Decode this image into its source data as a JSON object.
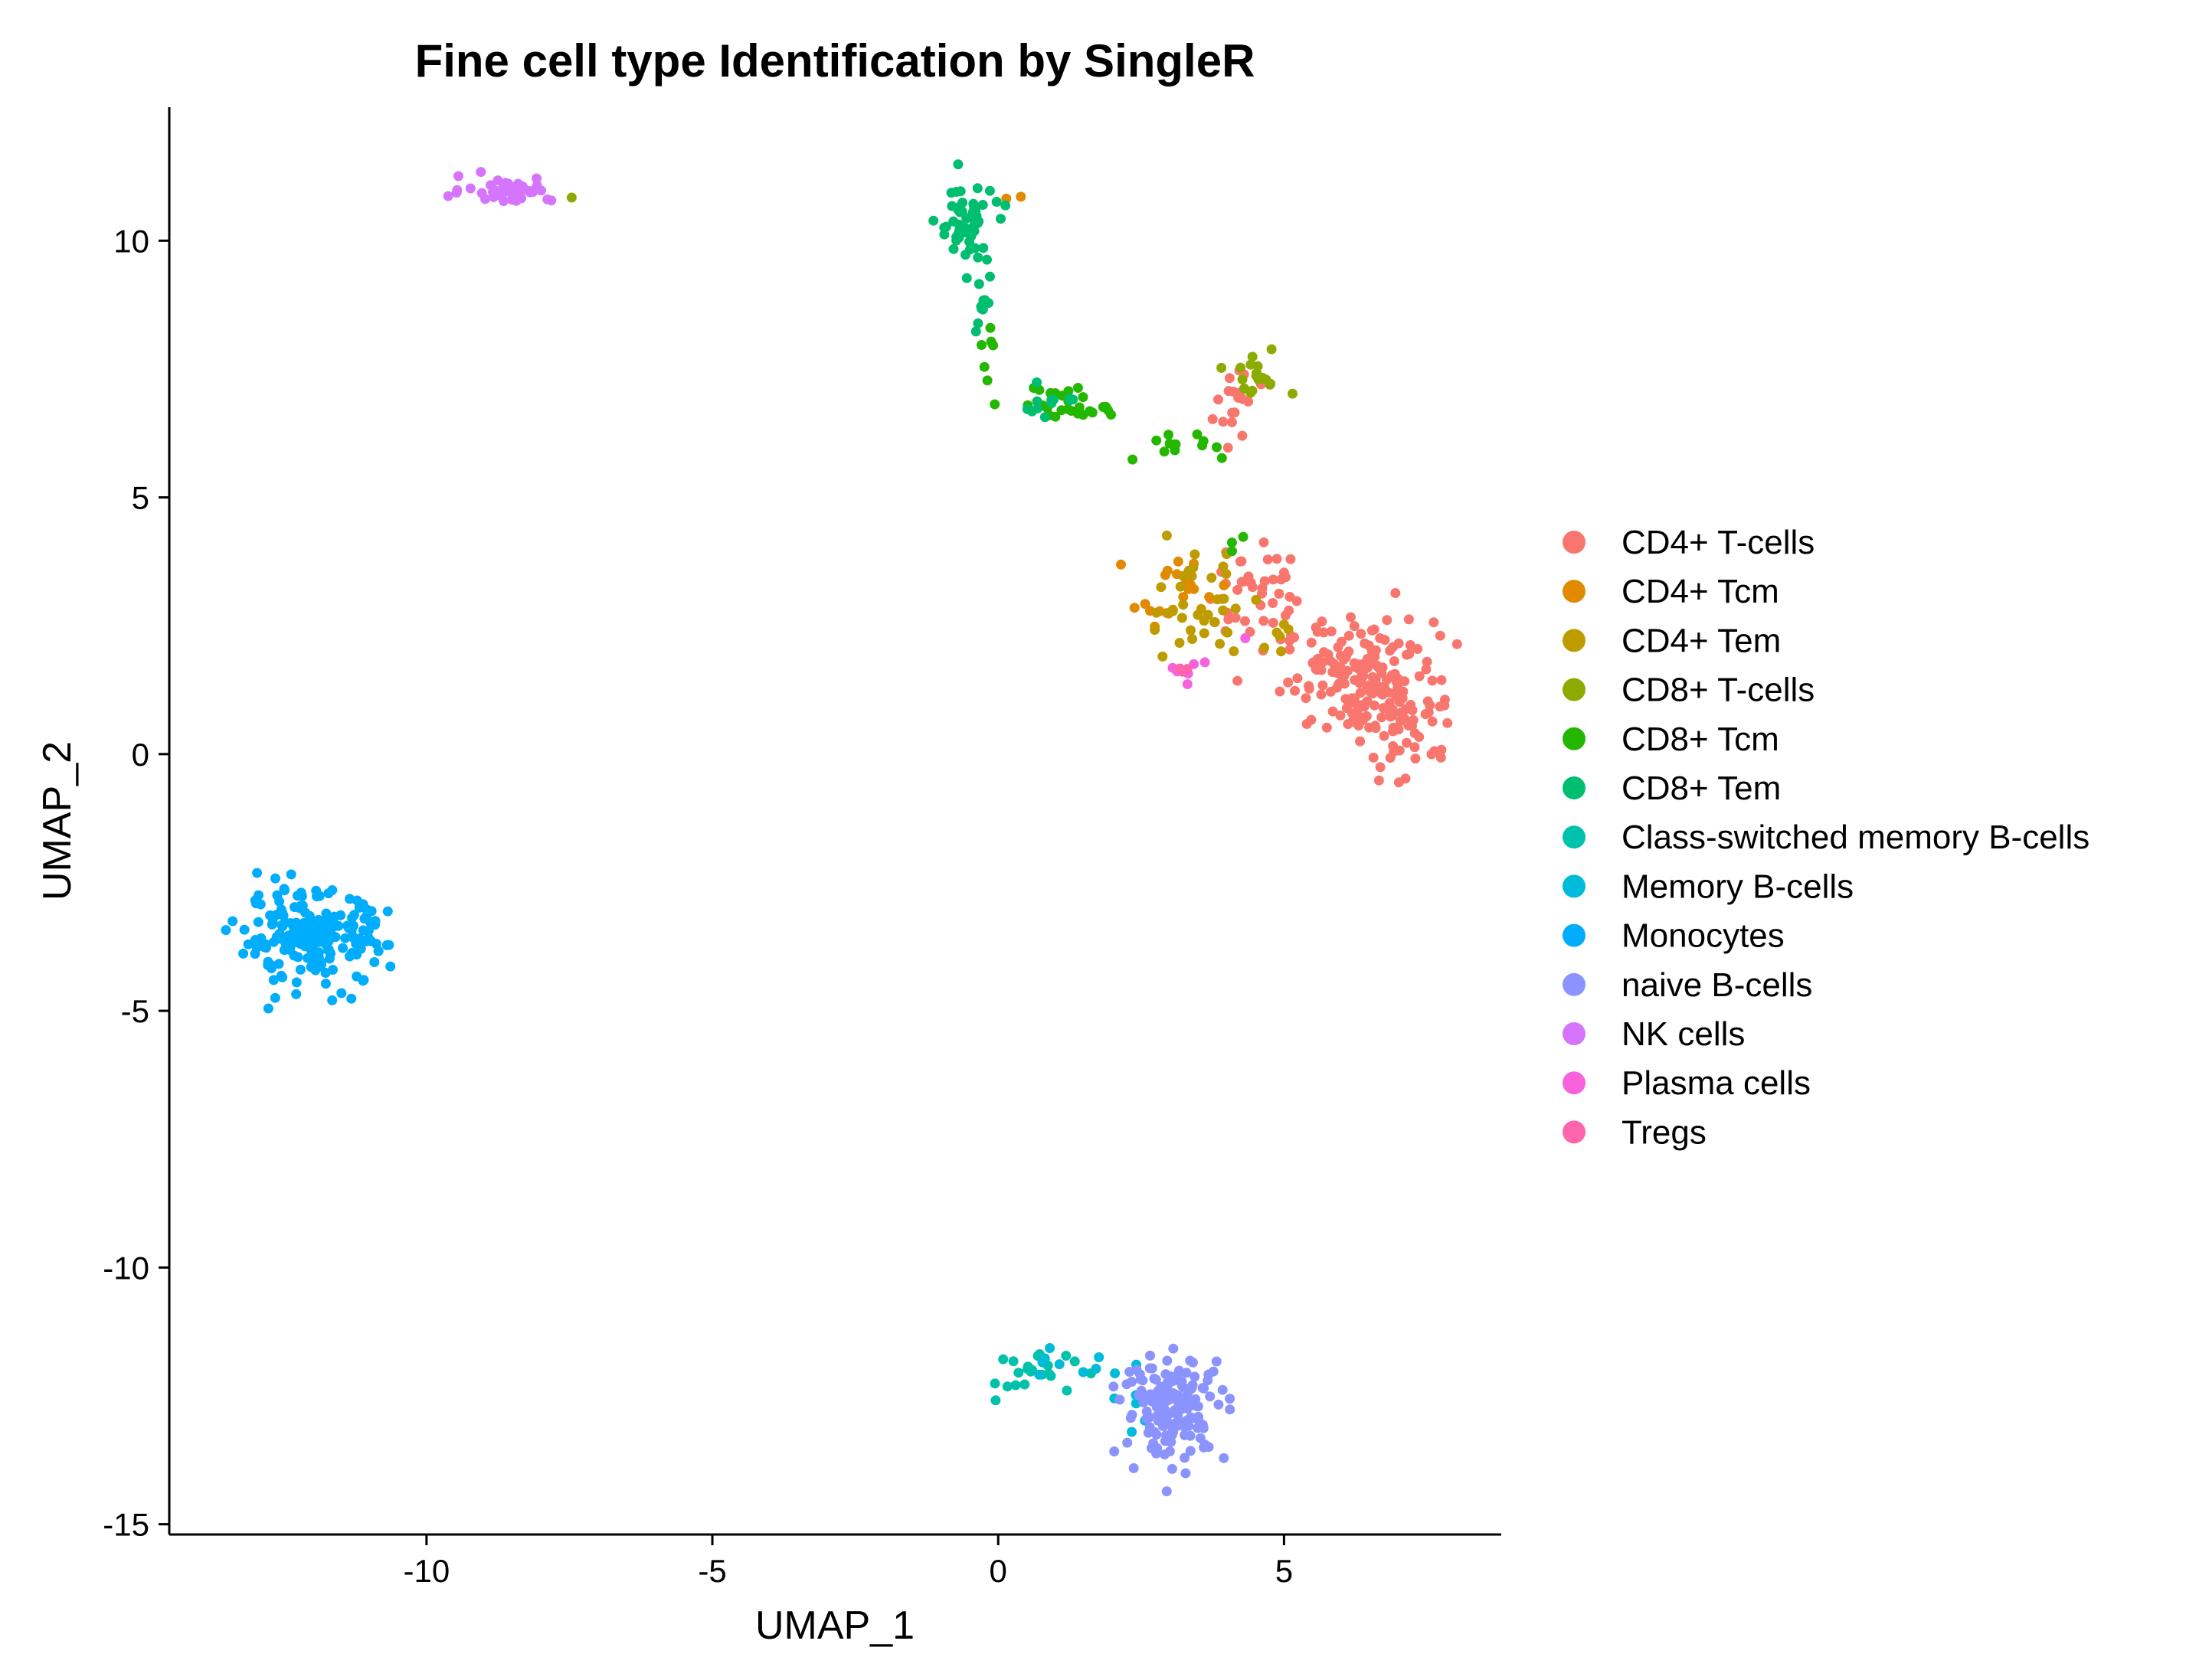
{
  "chart_data": {
    "type": "scatter",
    "title": "Fine cell type Identification by SingleR",
    "xlabel": "UMAP_1",
    "ylabel": "UMAP_2",
    "xlim": [
      -14.5,
      8.8
    ],
    "ylim": [
      -15.2,
      12.6
    ],
    "x_ticks": [
      -10,
      -5,
      0,
      5
    ],
    "y_ticks": [
      10,
      5,
      0,
      -5,
      -10,
      -15
    ],
    "grid": false,
    "legend_position": "right",
    "series": [
      {
        "name": "CD4+ T-cells",
        "color": "#F8766D",
        "clusters": [
          {
            "cx": 6.3,
            "cy": 1.5,
            "sx": 0.65,
            "sy": 0.55,
            "n": 140
          },
          {
            "cx": 7.1,
            "cy": 0.9,
            "sx": 0.45,
            "sy": 0.7,
            "n": 70
          },
          {
            "cx": 4.4,
            "cy": 3.2,
            "sx": 0.35,
            "sy": 0.5,
            "n": 40
          },
          {
            "cx": 4.1,
            "cy": 6.7,
            "sx": 0.25,
            "sy": 0.5,
            "n": 18
          }
        ]
      },
      {
        "name": "CD4+ Tcm",
        "color": "#E18A00",
        "clusters": [
          {
            "cx": 3.1,
            "cy": 3.2,
            "sx": 0.35,
            "sy": 0.3,
            "n": 20
          },
          {
            "cx": 0.2,
            "cy": 10.8,
            "sx": 0.1,
            "sy": 0.05,
            "n": 2
          }
        ]
      },
      {
        "name": "CD4+ Tem",
        "color": "#BE9C00",
        "clusters": [
          {
            "cx": 3.5,
            "cy": 2.9,
            "sx": 0.45,
            "sy": 0.5,
            "n": 38
          },
          {
            "cx": 4.8,
            "cy": 2.3,
            "sx": 0.2,
            "sy": 0.3,
            "n": 6
          }
        ]
      },
      {
        "name": "CD8+ T-cells",
        "color": "#8CAB00",
        "clusters": [
          {
            "cx": 4.5,
            "cy": 7.3,
            "sx": 0.25,
            "sy": 0.25,
            "n": 18
          },
          {
            "cx": -7.5,
            "cy": 10.9,
            "sx": 0.05,
            "sy": 0.05,
            "n": 1
          }
        ]
      },
      {
        "name": "CD8+ Tcm",
        "color": "#24B700",
        "clusters": [
          {
            "cx": 1.3,
            "cy": 6.8,
            "sx": 0.55,
            "sy": 0.2,
            "n": 28
          },
          {
            "cx": 3.1,
            "cy": 6.0,
            "sx": 0.3,
            "sy": 0.2,
            "n": 12
          },
          {
            "cx": 4.1,
            "cy": 4.2,
            "sx": 0.15,
            "sy": 0.1,
            "n": 3
          },
          {
            "cx": -0.2,
            "cy": 8.2,
            "sx": 0.15,
            "sy": 0.35,
            "n": 6
          }
        ]
      },
      {
        "name": "CD8+ Tem",
        "color": "#00BE70",
        "clusters": [
          {
            "cx": -0.6,
            "cy": 10.3,
            "sx": 0.25,
            "sy": 0.4,
            "n": 55
          },
          {
            "cx": -0.3,
            "cy": 8.9,
            "sx": 0.12,
            "sy": 0.5,
            "n": 12
          },
          {
            "cx": 1.0,
            "cy": 6.9,
            "sx": 0.35,
            "sy": 0.15,
            "n": 12
          }
        ]
      },
      {
        "name": "Class-switched memory B-cells",
        "color": "#00C1AB",
        "clusters": [
          {
            "cx": 0.5,
            "cy": -12.1,
            "sx": 0.45,
            "sy": 0.2,
            "n": 22
          }
        ]
      },
      {
        "name": "Memory B-cells",
        "color": "#00BBDA",
        "clusters": [
          {
            "cx": 1.5,
            "cy": -11.9,
            "sx": 0.35,
            "sy": 0.15,
            "n": 10
          },
          {
            "cx": 2.2,
            "cy": -12.9,
            "sx": 0.25,
            "sy": 0.3,
            "n": 5
          }
        ]
      },
      {
        "name": "Monocytes",
        "color": "#00ACFC",
        "clusters": [
          {
            "cx": -12.0,
            "cy": -3.6,
            "sx": 0.65,
            "sy": 0.45,
            "n": 200
          }
        ]
      },
      {
        "name": "naive B-cells",
        "color": "#8B93FF",
        "clusters": [
          {
            "cx": 3.1,
            "cy": -12.7,
            "sx": 0.45,
            "sy": 0.5,
            "n": 160
          }
        ]
      },
      {
        "name": "NK cells",
        "color": "#D575FE",
        "clusters": [
          {
            "cx": -8.6,
            "cy": 11.0,
            "sx": 0.4,
            "sy": 0.12,
            "n": 45
          }
        ]
      },
      {
        "name": "Plasma cells",
        "color": "#F962DD",
        "clusters": [
          {
            "cx": 3.3,
            "cy": 1.7,
            "sx": 0.15,
            "sy": 0.1,
            "n": 7
          },
          {
            "cx": 4.4,
            "cy": 2.3,
            "sx": 0.05,
            "sy": 0.05,
            "n": 1
          }
        ]
      },
      {
        "name": "Tregs",
        "color": "#FF65AC",
        "clusters": [
          {
            "cx": 3.2,
            "cy": 1.6,
            "sx": 0.1,
            "sy": 0.1,
            "n": 3
          }
        ]
      }
    ]
  }
}
